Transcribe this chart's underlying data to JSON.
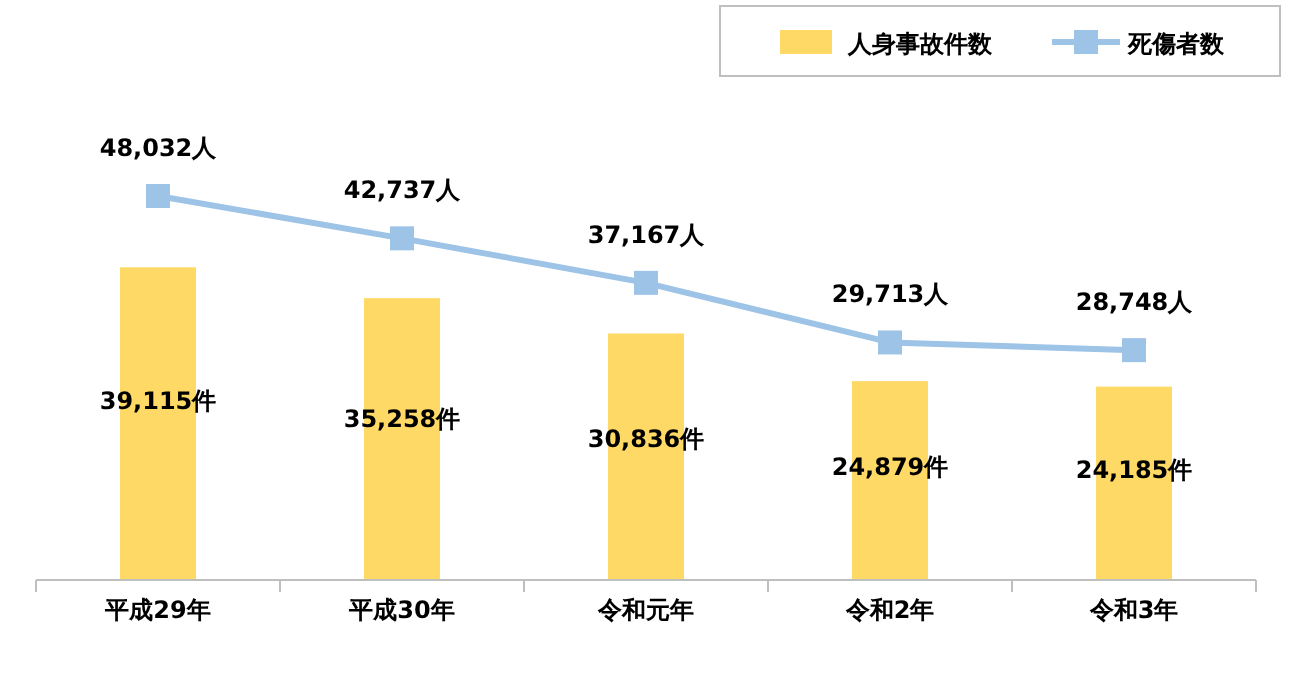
{
  "chart_data": {
    "type": "bar",
    "categories": [
      "平成29年",
      "平成30年",
      "令和元年",
      "令和2年",
      "令和3年"
    ],
    "series": [
      {
        "name": "人身事故件数",
        "color": "#ffd966",
        "values": [
          39115,
          35258,
          30836,
          24879,
          24185
        ],
        "value_labels": [
          "39,115件",
          "35,258件",
          "30,836件",
          "24,879件",
          "24,185件"
        ]
      },
      {
        "name": "死傷者数",
        "type": "line",
        "color": "#9dc3e6",
        "marker": "square",
        "values": [
          48032,
          42737,
          37167,
          29713,
          28748
        ],
        "value_labels": [
          "48,032人",
          "42,737人",
          "37,167人",
          "29,713人",
          "28,748人"
        ]
      }
    ],
    "legend": "top right",
    "grid": false
  }
}
